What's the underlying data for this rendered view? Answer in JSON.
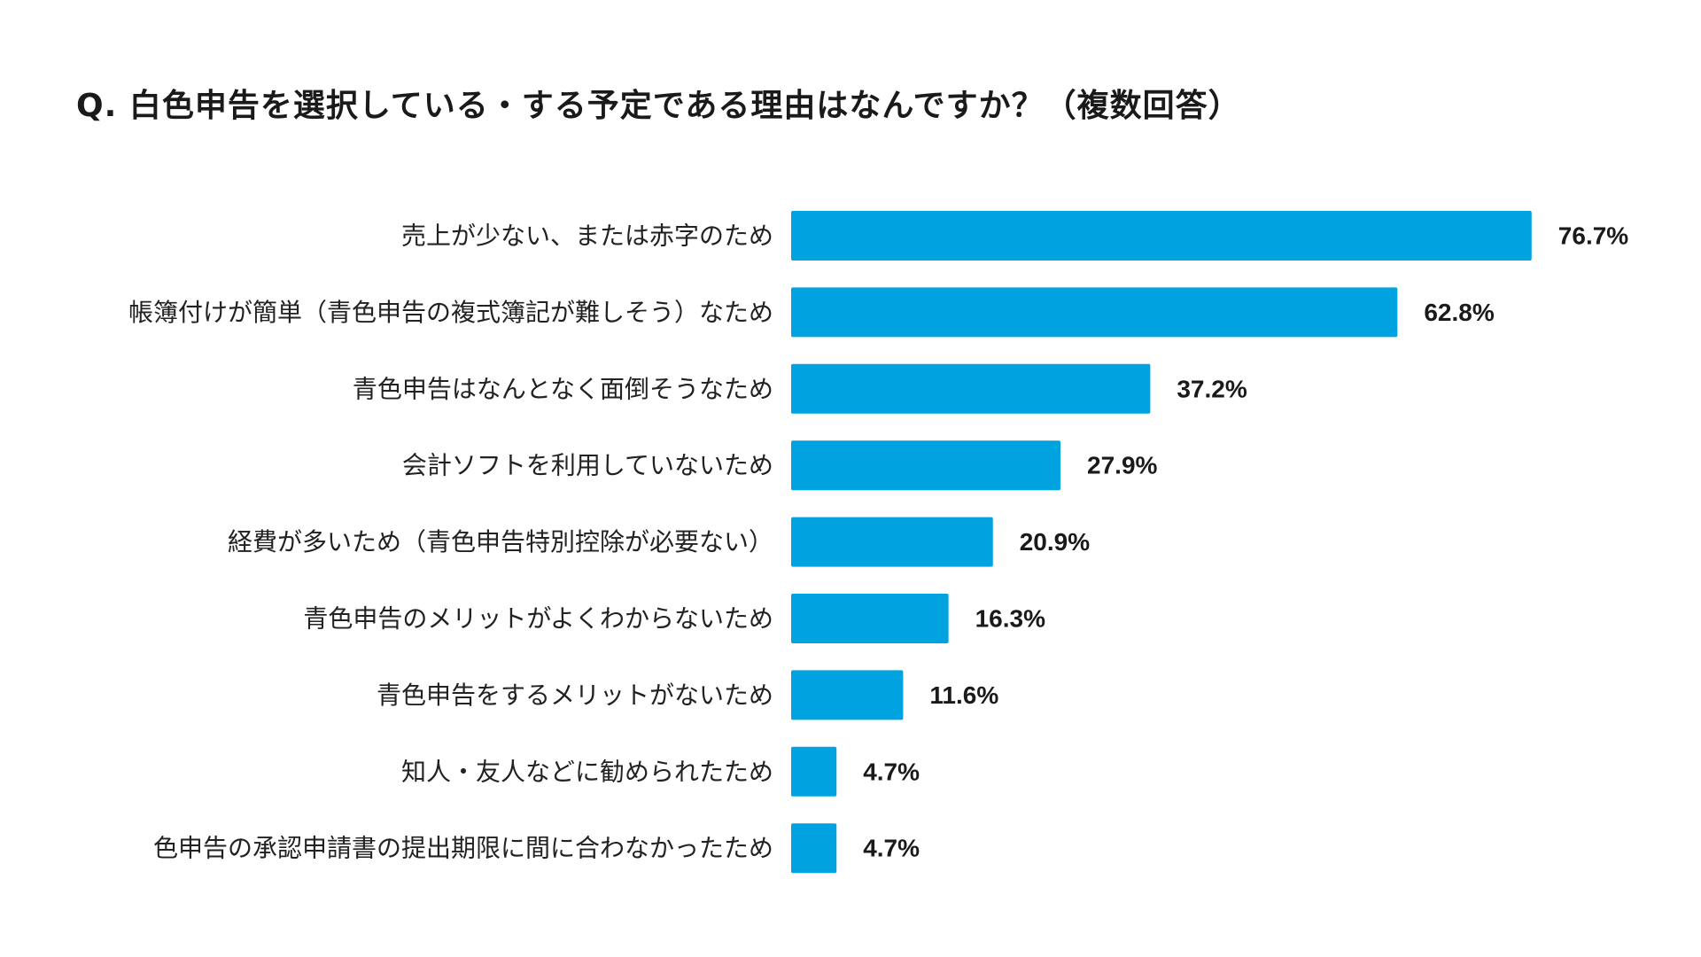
{
  "title": "Q. 白色申告を選択している・する予定である理由はなんですか？（複数回答）",
  "colors": {
    "bar": "#00a3e0",
    "text": "#1a1a1a",
    "background": "#ffffff"
  },
  "chart_data": {
    "type": "bar",
    "orientation": "horizontal",
    "title": "Q. 白色申告を選択している・する予定である理由はなんですか？（複数回答）",
    "categories": [
      "売上が少ない、または赤字のため",
      "帳簿付けが簡単（青色申告の複式簿記が難しそう）なため",
      "青色申告はなんとなく面倒そうなため",
      "会計ソフトを利用していないため",
      "経費が多いため（青色申告特別控除が必要ない）",
      "青色申告のメリットがよくわからないため",
      "青色申告をするメリットがないため",
      "知人・友人などに勧められたため",
      "色申告の承認申請書の提出期限に間に合わなかったため"
    ],
    "values": [
      76.7,
      62.8,
      37.2,
      27.9,
      20.9,
      16.3,
      11.6,
      4.7,
      4.7
    ],
    "value_labels": [
      "76.7%",
      "62.8%",
      "37.2%",
      "27.9%",
      "20.9%",
      "16.3%",
      "11.6%",
      "4.7%",
      "4.7%"
    ],
    "unit": "%",
    "xlim": [
      0,
      100
    ],
    "grid": false,
    "legend": "none"
  }
}
